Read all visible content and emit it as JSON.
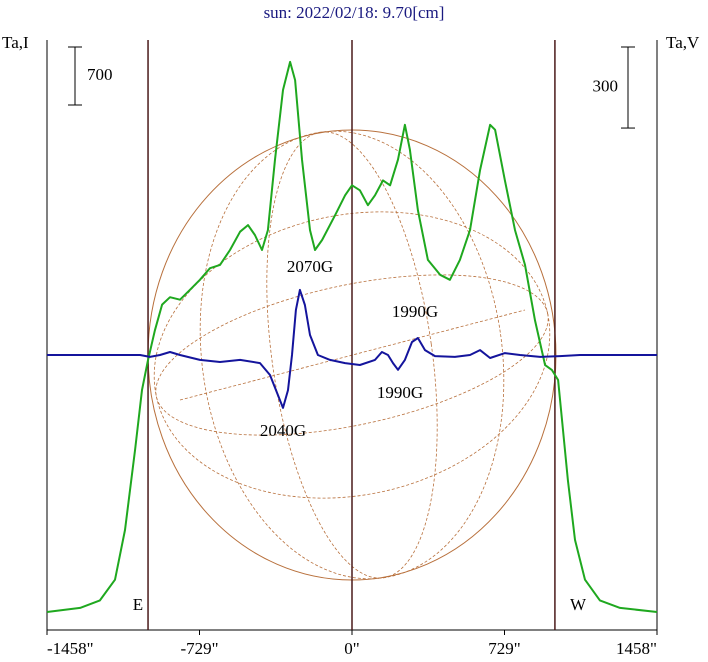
{
  "chart_data": {
    "type": "line",
    "title": "sun: 2022/02/18: 9.70[cm]",
    "xlim": [
      -1458,
      1458
    ],
    "xticks": [
      {
        "value": -1458,
        "label": "-1458\""
      },
      {
        "value": -729,
        "label": "-729\""
      },
      {
        "value": 0,
        "label": "0\""
      },
      {
        "value": 729,
        "label": "729\""
      },
      {
        "value": 1458,
        "label": "1458\""
      }
    ],
    "ylim": [
      -217,
      6904
    ],
    "y2lim": [
      -1018,
      1166
    ],
    "limb_radius": 975,
    "vlines": [
      -975,
      0,
      970
    ],
    "scale_bars": [
      {
        "axis": "y",
        "value": 700
      },
      {
        "axis": "y2",
        "value": 300
      }
    ],
    "annotations": [
      "2070G",
      "1990G",
      "1990G",
      "2040G",
      "E",
      "W"
    ],
    "series": [
      {
        "name": "Ta,I",
        "color": "#1fa81f",
        "x": [
          -1458,
          -1300,
          -1205,
          -1133,
          -1085,
          -1037,
          -1004,
          -975,
          -942,
          -908,
          -870,
          -822,
          -774,
          -727,
          -679,
          -631,
          -583,
          -535,
          -497,
          -464,
          -430,
          -402,
          -368,
          -330,
          -296,
          -272,
          -239,
          -201,
          -177,
          -143,
          -81,
          -33,
          0,
          38,
          76,
          110,
          148,
          182,
          220,
          253,
          277,
          315,
          363,
          421,
          468,
          516,
          564,
          612,
          660,
          684,
          731,
          779,
          827,
          875,
          923,
          956,
          985,
          1004,
          1032,
          1066,
          1114,
          1185,
          1281,
          1458
        ],
        "values": [
          0,
          50,
          140,
          390,
          990,
          1960,
          2680,
          3040,
          3400,
          3710,
          3800,
          3770,
          3890,
          4010,
          4150,
          4190,
          4370,
          4590,
          4670,
          4550,
          4370,
          4610,
          5460,
          6300,
          6640,
          6420,
          5460,
          4610,
          4370,
          4490,
          4790,
          5030,
          5150,
          5090,
          4910,
          5030,
          5210,
          5150,
          5460,
          5880,
          5580,
          4850,
          4250,
          4070,
          4010,
          4250,
          4610,
          5330,
          5880,
          5820,
          5210,
          4610,
          4190,
          3520,
          2980,
          2920,
          2800,
          2320,
          1590,
          870,
          390,
          140,
          50,
          0
        ]
      },
      {
        "name": "Ta,V",
        "color": "#14149c",
        "axis": "y2",
        "x": [
          -1458,
          -1013,
          -966,
          -918,
          -870,
          -822,
          -727,
          -631,
          -535,
          -440,
          -392,
          -354,
          -330,
          -306,
          -287,
          -268,
          -249,
          -225,
          -201,
          -163,
          -105,
          -33,
          38,
          110,
          143,
          172,
          196,
          220,
          253,
          287,
          315,
          349,
          397,
          492,
          564,
          612,
          660,
          731,
          803,
          899,
          994,
          1090,
          1458
        ],
        "values": [
          0,
          0,
          -7,
          0,
          11,
          0,
          -18,
          -26,
          -18,
          -30,
          -74,
          -148,
          -196,
          -130,
          0,
          167,
          241,
          185,
          74,
          0,
          -18,
          -30,
          -37,
          -18,
          11,
          0,
          -30,
          -55,
          -18,
          48,
          63,
          18,
          -4,
          -7,
          0,
          18,
          -11,
          7,
          0,
          -7,
          -4,
          0,
          0
        ]
      }
    ]
  }
}
